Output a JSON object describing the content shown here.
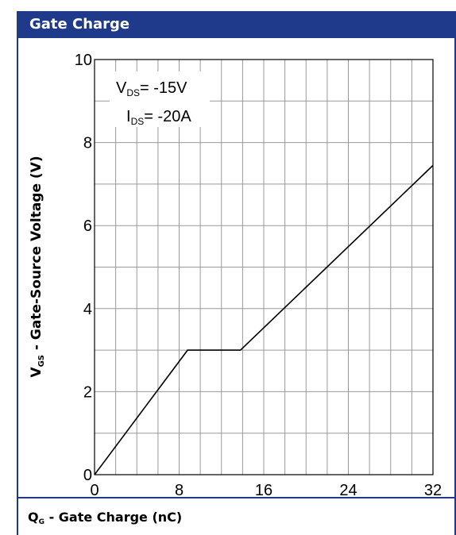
{
  "header": {
    "title": "Gate Charge"
  },
  "footer": {
    "xlabel_prefix": "Q",
    "xlabel_sub": "G",
    "xlabel_rest": " - Gate Charge (nC)"
  },
  "chart_data": {
    "type": "line",
    "title": "Gate Charge",
    "xlabel": "QG - Gate Charge (nC)",
    "ylabel": "VGS - Gate-Source Voltage (V)",
    "ylabel_prefix": "V",
    "ylabel_sub": "GS",
    "ylabel_rest": " - Gate-Source Voltage (V)",
    "xlim": [
      0,
      32
    ],
    "ylim": [
      0,
      10
    ],
    "xticks": [
      0,
      8,
      16,
      24,
      32
    ],
    "yticks": [
      0,
      2,
      4,
      6,
      8,
      10
    ],
    "grid": true,
    "annotations": [
      {
        "main": "V",
        "sub": "DS",
        "rest": "= -15V"
      },
      {
        "main": "I",
        "sub": "DS",
        "rest": "= -20A"
      }
    ],
    "series": [
      {
        "x": [
          0,
          8.8,
          13.8,
          32
        ],
        "y": [
          0,
          3.0,
          3.0,
          7.45
        ]
      }
    ]
  },
  "colors": {
    "header_bg": "#1f3a8a",
    "grid": "#999999",
    "line": "#000000"
  }
}
